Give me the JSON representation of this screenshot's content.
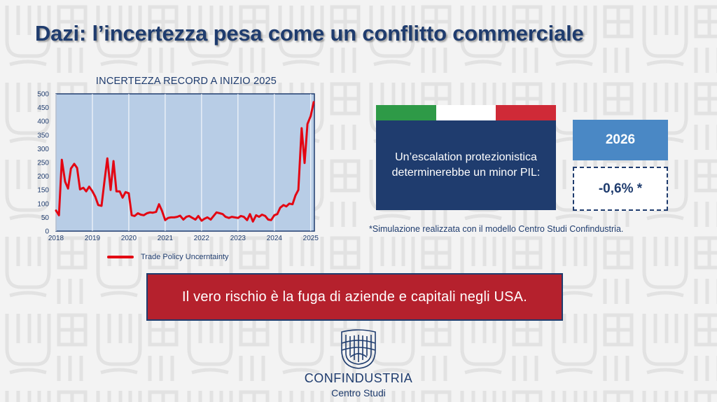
{
  "slide": {
    "title": "Dazi: l’incertezza pesa come un conflitto commerciale"
  },
  "chart_data": {
    "type": "line",
    "title": "INCERTEZZA RECORD A INIZIO 2025",
    "xlabel": "",
    "ylabel": "",
    "xlim": [
      2018,
      2025.1
    ],
    "ylim": [
      0,
      500
    ],
    "yticks": [
      0,
      50,
      100,
      150,
      200,
      250,
      300,
      350,
      400,
      450,
      500
    ],
    "xticks": [
      "2018",
      "2019",
      "2020",
      "2021",
      "2022",
      "2023",
      "2024",
      "2025"
    ],
    "grid": "vertical",
    "legend_position": "bottom",
    "colors": {
      "line": "#e30613",
      "plot_bg": "#b8cde6",
      "frame": "#1f3c6e"
    },
    "series": [
      {
        "name": "Trade Policy Uncerntainty",
        "x": [
          2018.0,
          2018.08,
          2018.16,
          2018.25,
          2018.33,
          2018.41,
          2018.5,
          2018.58,
          2018.66,
          2018.75,
          2018.83,
          2018.91,
          2019.0,
          2019.08,
          2019.16,
          2019.25,
          2019.33,
          2019.41,
          2019.5,
          2019.58,
          2019.66,
          2019.75,
          2019.83,
          2019.91,
          2020.0,
          2020.08,
          2020.16,
          2020.25,
          2020.33,
          2020.41,
          2020.5,
          2020.58,
          2020.66,
          2020.75,
          2020.83,
          2020.91,
          2021.0,
          2021.08,
          2021.16,
          2021.25,
          2021.33,
          2021.41,
          2021.5,
          2021.58,
          2021.66,
          2021.75,
          2021.83,
          2021.91,
          2022.0,
          2022.08,
          2022.16,
          2022.25,
          2022.33,
          2022.41,
          2022.5,
          2022.58,
          2022.66,
          2022.75,
          2022.83,
          2022.91,
          2023.0,
          2023.08,
          2023.16,
          2023.25,
          2023.33,
          2023.41,
          2023.5,
          2023.58,
          2023.66,
          2023.75,
          2023.83,
          2023.91,
          2024.0,
          2024.08,
          2024.16,
          2024.25,
          2024.33,
          2024.41,
          2024.5,
          2024.58,
          2024.66,
          2024.75,
          2024.83,
          2024.91,
          2025.0,
          2025.08
        ],
        "values": [
          75,
          58,
          260,
          180,
          155,
          228,
          245,
          230,
          152,
          158,
          145,
          162,
          145,
          125,
          95,
          92,
          180,
          265,
          150,
          255,
          145,
          145,
          122,
          142,
          138,
          58,
          55,
          65,
          60,
          58,
          65,
          68,
          67,
          70,
          98,
          75,
          40,
          48,
          50,
          50,
          52,
          56,
          42,
          52,
          55,
          48,
          42,
          55,
          38,
          45,
          50,
          42,
          55,
          68,
          65,
          62,
          52,
          48,
          52,
          50,
          48,
          55,
          52,
          40,
          62,
          35,
          58,
          52,
          60,
          55,
          42,
          40,
          58,
          62,
          85,
          95,
          90,
          100,
          98,
          130,
          150,
          375,
          248,
          390,
          420,
          470
        ]
      }
    ]
  },
  "scenario": {
    "flag_colors": [
      "#2e9a47",
      "#ffffff",
      "#cf2a37"
    ],
    "text": "Un’escalation protezionistica determinerebbe un minor PIL:",
    "year": "2026",
    "value": "-0,6% *",
    "footnote": "*Simulazione realizzata con il modello Centro Studi Confindustria."
  },
  "risk": {
    "text": "Il vero rischio è la fuga di aziende e capitali negli USA."
  },
  "logo": {
    "name": "CONFINDUSTRIA",
    "subtitle": "Centro Studi"
  },
  "theme": {
    "navy": "#1f3c6e",
    "accent_red": "#b5212d",
    "accent_blue": "#4a88c5"
  }
}
